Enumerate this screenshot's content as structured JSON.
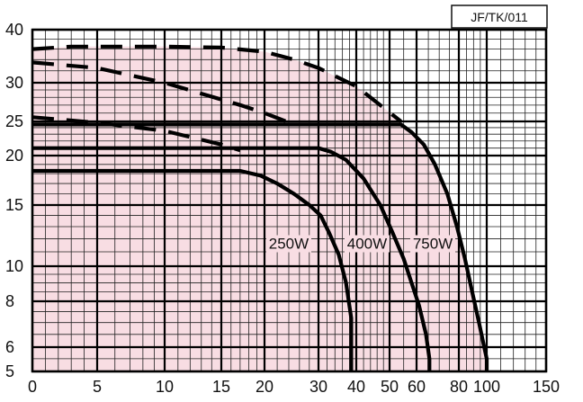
{
  "chart_data": {
    "type": "line",
    "reference": "JF/TK/011",
    "xscale": "log",
    "yscale": "log",
    "xlim": [
      0,
      150
    ],
    "ylim": [
      5,
      40
    ],
    "x_ticks": [
      {
        "v": 0,
        "label": "0"
      },
      {
        "v": 5,
        "label": "5"
      },
      {
        "v": 10,
        "label": "10"
      },
      {
        "v": 15,
        "label": "15"
      },
      {
        "v": 20,
        "label": "20"
      },
      {
        "v": 30,
        "label": "30"
      },
      {
        "v": 40,
        "label": "40"
      },
      {
        "v": 50,
        "label": "50"
      },
      {
        "v": 60,
        "label": "60"
      },
      {
        "v": 80,
        "label": "80"
      },
      {
        "v": 100,
        "label": "100"
      },
      {
        "v": 150,
        "label": "150"
      }
    ],
    "y_ticks": [
      {
        "v": 5,
        "label": "5"
      },
      {
        "v": 6,
        "label": "6"
      },
      {
        "v": 8,
        "label": "8"
      },
      {
        "v": 10,
        "label": "10"
      },
      {
        "v": 15,
        "label": "15"
      },
      {
        "v": 20,
        "label": "20"
      },
      {
        "v": 25,
        "label": "25"
      },
      {
        "v": 30,
        "label": "30"
      },
      {
        "v": 40,
        "label": "40"
      }
    ],
    "grid": true,
    "shaded_region_color": "#f8dde3",
    "series": [
      {
        "name": "250W",
        "points": [
          [
            0,
            18.3
          ],
          [
            17,
            18.3
          ],
          [
            19.5,
            17.8
          ],
          [
            22,
            17
          ],
          [
            25,
            16
          ],
          [
            28,
            15
          ],
          [
            30.5,
            14
          ],
          [
            32.5,
            12.5
          ],
          [
            35,
            10.8
          ],
          [
            37,
            9
          ],
          [
            38.5,
            7.2
          ],
          [
            38.5,
            5
          ]
        ],
        "dashed_points": [
          [
            0,
            25.5
          ],
          [
            5,
            24.8
          ],
          [
            10,
            23.5
          ],
          [
            15,
            21.5
          ],
          [
            17,
            20.7
          ]
        ]
      },
      {
        "name": "400W",
        "points": [
          [
            0,
            21
          ],
          [
            30,
            21
          ],
          [
            33,
            20.5
          ],
          [
            37,
            19.5
          ],
          [
            42,
            17.5
          ],
          [
            47,
            15
          ],
          [
            51,
            12.5
          ],
          [
            55,
            10.5
          ],
          [
            58,
            9
          ],
          [
            61,
            7.8
          ],
          [
            64,
            6.5
          ],
          [
            65.5,
            5.5
          ],
          [
            65.5,
            5
          ]
        ],
        "dashed_points": [
          [
            0,
            33.5
          ],
          [
            5,
            32.5
          ],
          [
            10,
            30
          ],
          [
            13,
            28.5
          ],
          [
            17,
            27
          ],
          [
            20,
            26
          ],
          [
            25,
            24.5
          ]
        ]
      },
      {
        "name": "750W",
        "points": [
          [
            0,
            24.5
          ],
          [
            54,
            24.5
          ],
          [
            58,
            23.3
          ],
          [
            63,
            21.5
          ],
          [
            68,
            19
          ],
          [
            74,
            16
          ],
          [
            79,
            13
          ],
          [
            84,
            10.5
          ],
          [
            89,
            8.5
          ],
          [
            94,
            7
          ],
          [
            98,
            6
          ],
          [
            100,
            5.5
          ],
          [
            100,
            5
          ]
        ],
        "dashed_points": [
          [
            0,
            36
          ],
          [
            3,
            36.5
          ],
          [
            5,
            36.5
          ],
          [
            10,
            36.5
          ],
          [
            15,
            36.3
          ],
          [
            20,
            35.5
          ],
          [
            25,
            34
          ],
          [
            30,
            32.5
          ],
          [
            40,
            29.5
          ],
          [
            54,
            25
          ]
        ]
      }
    ]
  }
}
